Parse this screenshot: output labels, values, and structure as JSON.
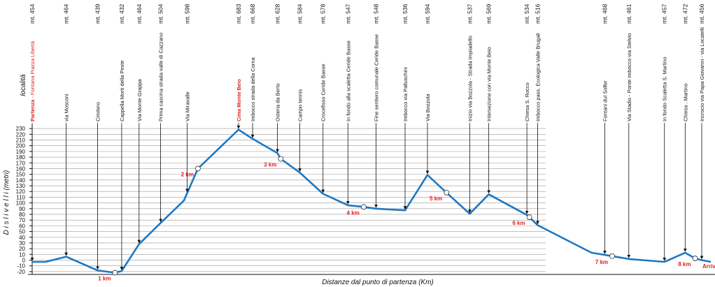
{
  "chart_data": {
    "type": "line",
    "y_label": "D i s l i v e l l i   (metri)",
    "x_label": "Distanze dal punto di partenza   (Km)",
    "locality_label": "località",
    "end_label": "Arrivo",
    "color": "#1f78c1",
    "grid": true,
    "xlim": [
      0,
      8.24
    ],
    "ylim": [
      -25,
      235
    ],
    "yticks": [
      -20,
      -10,
      0,
      10,
      20,
      30,
      40,
      50,
      60,
      70,
      80,
      90,
      100,
      110,
      120,
      130,
      140,
      150,
      160,
      170,
      180,
      190,
      200,
      210,
      220,
      230
    ],
    "x": [
      0,
      0.16,
      0.41,
      0.79,
      1.0,
      1.08,
      1.29,
      1.55,
      1.83,
      2.0,
      2.49,
      2.66,
      2.96,
      3.0,
      3.23,
      3.51,
      3.81,
      4.0,
      4.15,
      4.5,
      4.77,
      5.0,
      5.28,
      5.51,
      5.97,
      6.0,
      6.1,
      6.75,
      7.0,
      7.2,
      7.63,
      7.88,
      8.0,
      8.08,
      8.19
    ],
    "values": [
      -3,
      -3,
      6,
      -18,
      -22,
      -19,
      28,
      65,
      104,
      160,
      228,
      212,
      187,
      177,
      153,
      116,
      96,
      93,
      90,
      87,
      149,
      118,
      81,
      115,
      79,
      75,
      61,
      13,
      7,
      2,
      -3,
      13,
      3,
      0,
      -3
    ],
    "km_marks": [
      {
        "value": 1,
        "label": "1 km"
      },
      {
        "value": 2,
        "label": "2 km"
      },
      {
        "value": 3,
        "label": "3 km"
      },
      {
        "value": 4,
        "label": "4 km"
      },
      {
        "value": 5,
        "label": "5 km"
      },
      {
        "value": 6,
        "label": "6 km"
      },
      {
        "value": 7,
        "label": "7 km"
      },
      {
        "value": 8,
        "label": "8 km"
      }
    ],
    "locations": [
      {
        "name": "Partenza",
        "name_suffix": " - Fontana Piazza Libertà",
        "altitude": "mt. 454",
        "x": 0,
        "color": "#e02020"
      },
      {
        "name": "via Mosconi",
        "altitude": "mt. 464",
        "x": 0.41
      },
      {
        "name": "Cimitero",
        "altitude": "mt. 439",
        "x": 0.79
      },
      {
        "name": "Cappella Morti della Peste",
        "altitude": "mt. 432",
        "x": 1.08
      },
      {
        "name": "Via Monte Grappa",
        "altitude": "mt. 464",
        "x": 1.29
      },
      {
        "name": "Prima cascina strada valle di Cazzano",
        "altitude": "mt. 504",
        "x": 1.55
      },
      {
        "name": "Via Miravalle",
        "altitude": "mt. 598",
        "x": 1.87
      },
      {
        "name": "Cima Monte Beio",
        "altitude": "mt. 683",
        "x": 2.49,
        "color": "#e02020"
      },
      {
        "name": "Imbocco strada della Corna",
        "altitude": "mt. 668",
        "x": 2.66
      },
      {
        "name": "Osteria da Berto",
        "altitude": "mt. 628",
        "x": 2.96
      },
      {
        "name": "Campo tennis",
        "altitude": "mt. 584",
        "x": 3.23
      },
      {
        "name": "Crocefisso Ceride Basse",
        "altitude": "mt. 578",
        "x": 3.51
      },
      {
        "name": "In fondo alla scaletta Ceride Basse",
        "altitude": "mt. 547",
        "x": 3.81
      },
      {
        "name": "Fine sentiero comunale Ceride Basse",
        "altitude": "mt. 548",
        "x": 4.15
      },
      {
        "name": "Imbocco via Palluschini",
        "altitude": "mt. 536",
        "x": 4.5
      },
      {
        "name": "Via Bozzola",
        "altitude": "mt. 594",
        "x": 4.77
      },
      {
        "name": "Inizio via Bozzola - Strada Impiadello",
        "altitude": "mt. 537",
        "x": 5.28
      },
      {
        "name": "Intersezione con via Monte Beio",
        "altitude": "mt. 569",
        "x": 5.51
      },
      {
        "name": "Chiesa S. Rocco",
        "altitude": "mt. 534",
        "x": 5.97
      },
      {
        "name": "Imbocco pass. Ecologica Valle Brugali",
        "altitude": "mt. 516",
        "x": 6.1
      },
      {
        "name": "Fontani dul Solfer",
        "altitude": "mt. 468",
        "x": 6.91
      },
      {
        "name": "Via Stadio - Ponte imbocco via Stelvio",
        "altitude": "mt. 461",
        "x": 7.2
      },
      {
        "name": "In fondo Scaletta S. Martino",
        "altitude": "mt. 457",
        "x": 7.63
      },
      {
        "name": "Chiesa . Martino",
        "altitude": "mt. 472",
        "x": 7.88
      },
      {
        "name": "Incrocio via Papa Giovanni - via Locatelli",
        "altitude": "mt. 456",
        "x": 8.08
      }
    ]
  }
}
